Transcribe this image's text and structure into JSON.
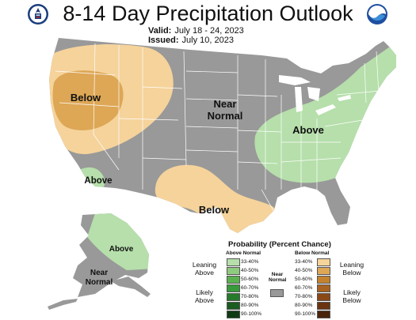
{
  "header": {
    "title": "8-14 Day Precipitation Outlook",
    "valid_label": "Valid:",
    "valid_value": "July 18 - 24, 2023",
    "issued_label": "Issued:",
    "issued_value": "July 10, 2023"
  },
  "logos": {
    "left": "doc-seal-icon",
    "right": "noaa-logo-icon"
  },
  "map": {
    "region_labels": {
      "west_below": "Below",
      "central_near": "Near",
      "central_normal": "Normal",
      "east_above": "Above",
      "southwest_above": "Above",
      "south_below": "Below",
      "alaska_above": "Above",
      "alaska_near": "Near",
      "alaska_normal": "Normal"
    },
    "colors": {
      "near_normal": "#999999",
      "above_33_40": "#b6dfab",
      "below_33_40": "#f5d39b",
      "below_40_50": "#dda756",
      "borders": "#ffffff",
      "water": "#ffffff"
    }
  },
  "legend": {
    "title": "Probability (Percent Chance)",
    "above_header": "Above Normal",
    "below_header": "Below Normal",
    "near_header_1": "Near",
    "near_header_2": "Normal",
    "leaning_above_1": "Leaning",
    "leaning_above_2": "Above",
    "likely_above_1": "Likely",
    "likely_above_2": "Above",
    "leaning_below_1": "Leaning",
    "leaning_below_2": "Below",
    "likely_below_1": "Likely",
    "likely_below_2": "Below",
    "above_bins": [
      {
        "label": "33-40%",
        "color": "#b6dfab"
      },
      {
        "label": "40-50%",
        "color": "#8fcb7e"
      },
      {
        "label": "50-60%",
        "color": "#5bb14f"
      },
      {
        "label": "60-70%",
        "color": "#389a3b"
      },
      {
        "label": "70-80%",
        "color": "#257a2b"
      },
      {
        "label": "80-90%",
        "color": "#1b5c20"
      },
      {
        "label": "90-100%",
        "color": "#103b14"
      }
    ],
    "below_bins": [
      {
        "label": "33-40%",
        "color": "#f5d39b"
      },
      {
        "label": "40-50%",
        "color": "#dda756"
      },
      {
        "label": "50-60%",
        "color": "#c4822f"
      },
      {
        "label": "60-70%",
        "color": "#a86322"
      },
      {
        "label": "70-80%",
        "color": "#8a4817"
      },
      {
        "label": "80-90%",
        "color": "#6b3411"
      },
      {
        "label": "90-100%",
        "color": "#4a230b"
      }
    ],
    "near_color": "#999999"
  }
}
